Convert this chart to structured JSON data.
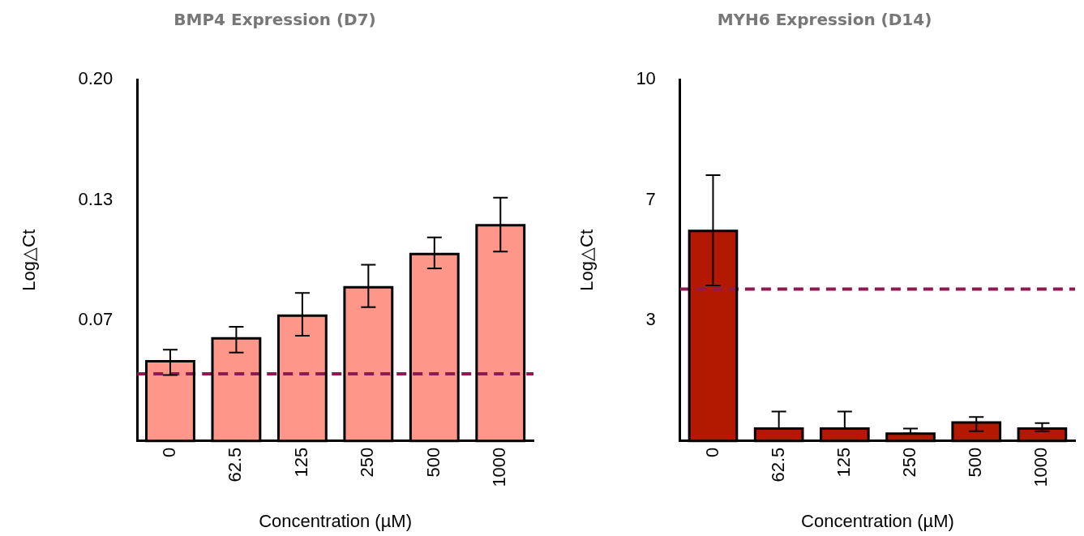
{
  "chart_data": [
    {
      "type": "bar",
      "title": "BMP4 Expression (D7)",
      "xlabel": "Concentration (µM)",
      "ylabel": "Log△Ct",
      "categories": [
        "0",
        "62.5",
        "125",
        "250",
        "500",
        "1000"
      ],
      "values": [
        0.0441,
        0.0567,
        0.0693,
        0.085,
        0.1034,
        0.1193
      ],
      "color": "#fe968a",
      "errors": [
        [
          0.0364,
          0.0505
        ],
        [
          0.0489,
          0.0631
        ],
        [
          0.0582,
          0.0819
        ],
        [
          0.074,
          0.0974
        ],
        [
          0.0954,
          0.1126
        ],
        [
          0.1047,
          0.1346
        ]
      ],
      "ylim": [
        0,
        0.2
      ],
      "yticks": [
        {
          "value": 0.0667,
          "label": "0.07"
        },
        {
          "value": 0.1333,
          "label": "0.13"
        },
        {
          "value": 0.2,
          "label": "0.20"
        }
      ],
      "ref_lines": [
        {
          "axis": "y",
          "value": 0.0371,
          "color": "#8e1a4f",
          "line_style": "dashed"
        }
      ]
    },
    {
      "type": "bar",
      "title": "MYH6 Expression (D14)",
      "xlabel": "Concentration (µM)",
      "ylabel": "Log△Ct",
      "categories": [
        "0",
        "62.5",
        "125",
        "250",
        "500",
        "1000"
      ],
      "values": [
        5.81,
        0.34,
        0.34,
        0.2,
        0.51,
        0.34
      ],
      "color": "#b31800",
      "errors": [
        [
          4.3,
          7.35
        ],
        [
          0.34,
          0.81
        ],
        [
          0.34,
          0.81
        ],
        [
          0.2,
          0.34
        ],
        [
          0.27,
          0.66
        ],
        [
          0.27,
          0.49
        ]
      ],
      "ylim": [
        0,
        10
      ],
      "yticks": [
        {
          "value": 3.333,
          "label": "3"
        },
        {
          "value": 6.667,
          "label": "7"
        },
        {
          "value": 10,
          "label": "10"
        }
      ],
      "ref_lines": [
        {
          "axis": "y",
          "value": 4.2,
          "color": "#8e1a4f",
          "line_style": "dashed"
        }
      ]
    }
  ]
}
